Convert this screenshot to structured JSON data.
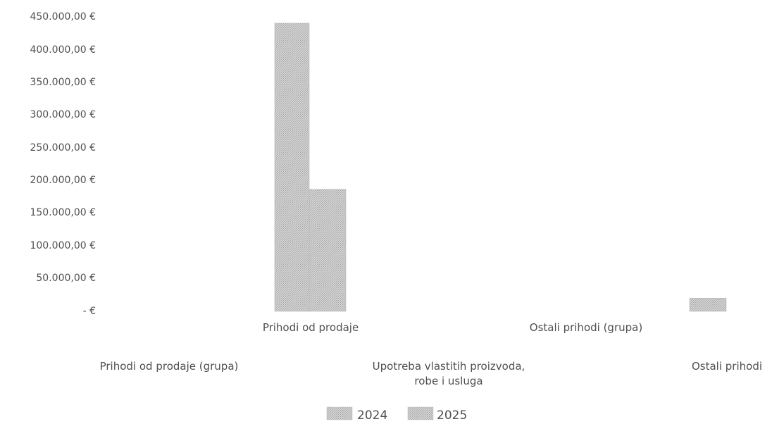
{
  "chart_data": {
    "type": "bar",
    "y_tick_labels": [
      "450.000,00 €",
      "400.000,00 €",
      "350.000,00 €",
      "300.000,00 €",
      "250.000,00 €",
      "200.000,00 €",
      "150.000,00 €",
      "100.000,00 €",
      "50.000,00 €",
      "-  €"
    ],
    "ylim": [
      0,
      450000
    ],
    "categories": [
      "Prihodi od prodaje (grupa)",
      "Prihodi od prodaje",
      "Upotreba vlastitih proizvoda, robe i usluga",
      "Ostali prihodi (grupa)",
      "Ostali prihodi"
    ],
    "series": [
      {
        "name": "2024",
        "values": [
          0,
          437000,
          0,
          0,
          0
        ]
      },
      {
        "name": "2025",
        "values": [
          0,
          185000,
          0,
          0,
          20000
        ]
      }
    ],
    "legend_position": "bottom",
    "grid": false,
    "colors": {
      "series_2024": "#c4c4c4",
      "series_2025": "#cbcbcb"
    }
  }
}
